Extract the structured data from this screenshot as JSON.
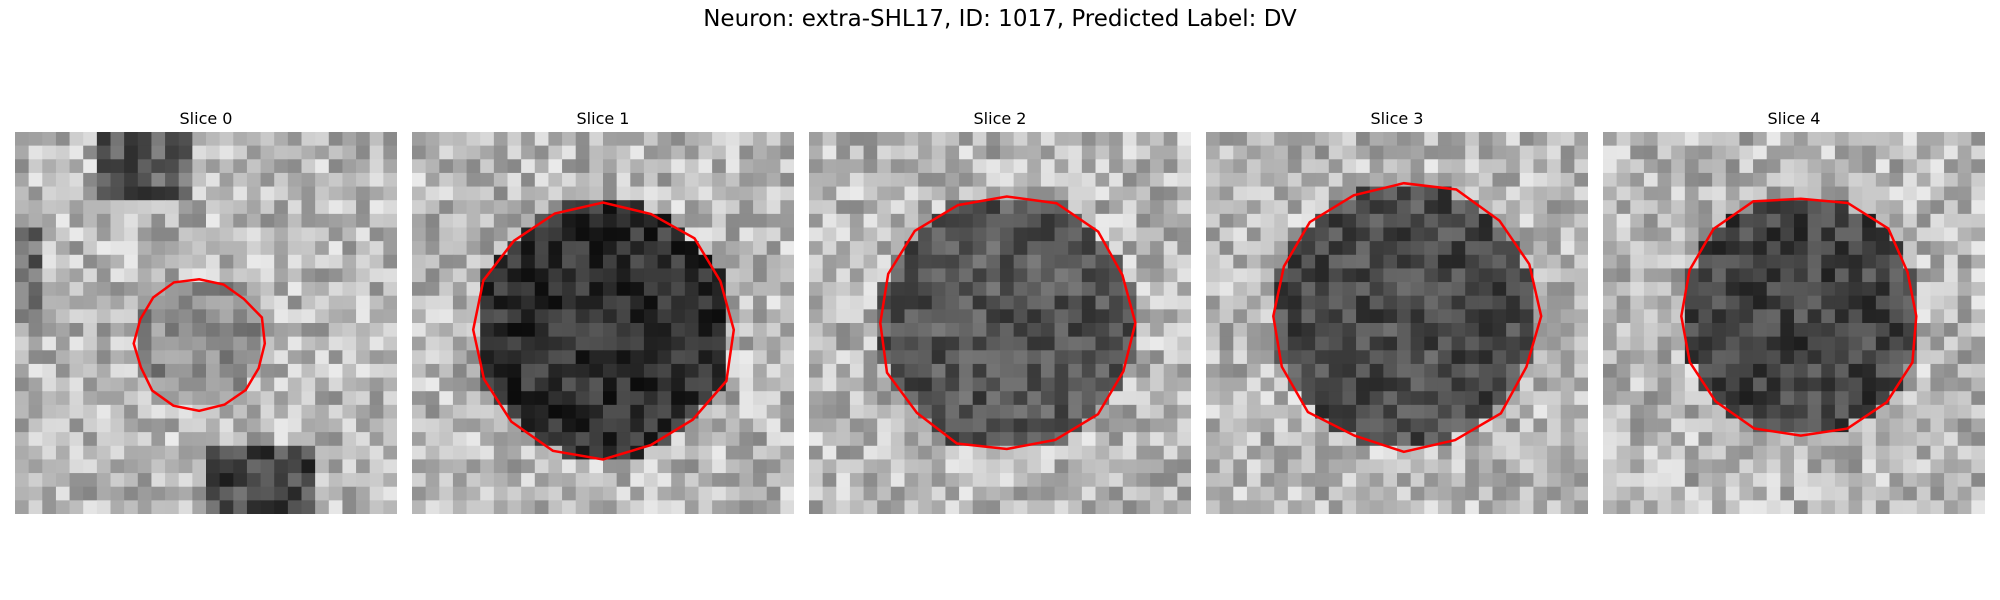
{
  "figure": {
    "title": "Neuron: extra-SHL17, ID: 1017, Predicted Label: DV"
  },
  "panels": [
    {
      "title": "Slice 0",
      "seed": 11,
      "contour": "#ff0000"
    },
    {
      "title": "Slice 1",
      "seed": 23,
      "contour": "#ff0000"
    },
    {
      "title": "Slice 2",
      "seed": 37,
      "contour": "#ff0000"
    },
    {
      "title": "Slice 3",
      "seed": 53,
      "contour": "#ff0000"
    },
    {
      "title": "Slice 4",
      "seed": 71,
      "contour": "#ff0000"
    }
  ]
}
